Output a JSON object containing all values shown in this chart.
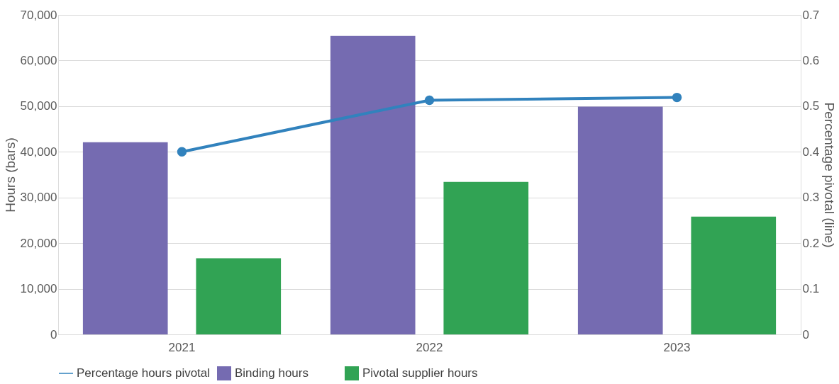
{
  "chart_data": {
    "type": "bar",
    "categories": [
      "2021",
      "2022",
      "2023"
    ],
    "series": [
      {
        "name": "Binding hours",
        "color": "#756bb1",
        "values": [
          42100,
          65400,
          49900
        ]
      },
      {
        "name": "Pivotal supplier hours",
        "color": "#31a354",
        "values": [
          16700,
          33400,
          25800
        ]
      },
      {
        "name": "Percentage hours pivotal",
        "color": "#3182bd",
        "values": [
          0.4,
          0.513,
          0.519
        ],
        "type": "line",
        "axis": "y2",
        "marker": "circle"
      }
    ],
    "ylabel": "Hours (bars)",
    "y2label": "Percentage pivotal (line)",
    "ylim": [
      0,
      70000
    ],
    "yticks": [
      0,
      {
        "value": 10000,
        "label": "10,000"
      },
      {
        "value": 20000,
        "label": "20,000"
      },
      {
        "value": 30000,
        "label": "30,000"
      },
      {
        "value": 40000,
        "label": "40,000"
      },
      {
        "value": 50000,
        "label": "50,000"
      },
      {
        "value": 60000,
        "label": "60,000"
      },
      {
        "value": 70000,
        "label": "70,000"
      }
    ],
    "y2lim": [
      0,
      0.7
    ],
    "y2ticks": [
      0,
      0.1,
      0.2,
      0.3,
      0.4,
      0.5,
      0.6,
      0.7
    ],
    "grid": "y",
    "legend": "bottom"
  }
}
